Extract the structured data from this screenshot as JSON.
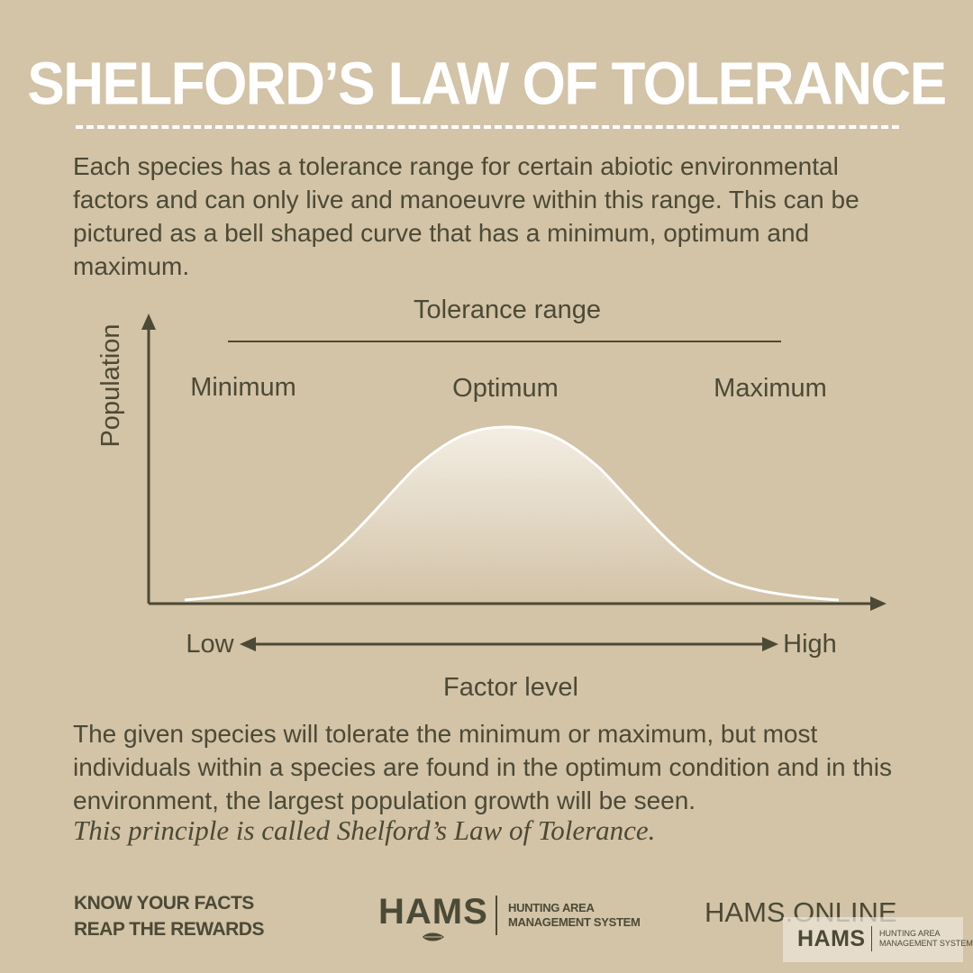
{
  "title": "SHELFORD’S LAW OF TOLERANCE",
  "intro": "Each species has a tolerance range for certain abiotic environmental factors and can only live and manoeuvre within this range. This can be pictured as a bell shaped curve that has a minimum, optimum and maximum.",
  "diagram": {
    "y_axis_label": "Population",
    "x_axis_label": "Factor level",
    "range_label": "Tolerance range",
    "labels": {
      "minimum": "Minimum",
      "optimum": "Optimum",
      "maximum": "Maximum"
    },
    "scale": {
      "low": "Low",
      "high": "High"
    },
    "curve": "bell"
  },
  "conclusion": "The given species will tolerate the minimum or maximum, but most individuals within a species are found in the optimum condition and in this environment, the largest population growth will be seen.",
  "principle": "This principle is called Shelford’s Law of Tolerance.",
  "footer": {
    "tagline_1": "KNOW YOUR FACTS",
    "tagline_2": "REAP THE REWARDS",
    "logo_word": "HAMS",
    "logo_sub_1": "HUNTING AREA",
    "logo_sub_2": "MANAGEMENT SYSTEM",
    "website": "HAMS.ONLINE"
  },
  "watermark": {
    "word": "HAMS",
    "sub_1": "HUNTING AREA",
    "sub_2": "MANAGEMENT SYSTEM"
  },
  "colors": {
    "background": "#d3c3a7",
    "text": "#4b4a36",
    "title": "#ffffff"
  }
}
